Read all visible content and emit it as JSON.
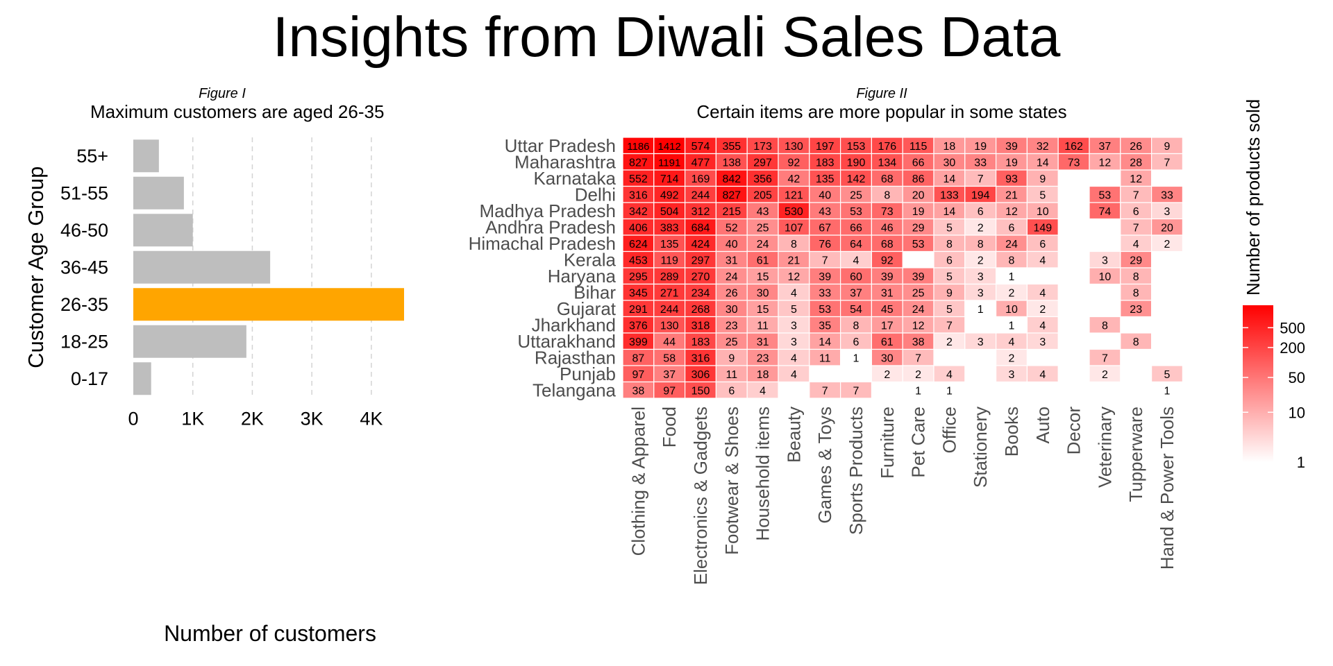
{
  "title": "Insights from Diwali Sales Data",
  "chart_data": [
    {
      "type": "bar",
      "orientation": "horizontal",
      "figure_label": "Figure I",
      "subtitle": "Maximum customers are aged 26-35",
      "xlabel": "Number of customers",
      "ylabel": "Customer Age Group",
      "categories": [
        "55+",
        "51-55",
        "46-50",
        "36-45",
        "26-35",
        "18-25",
        "0-17"
      ],
      "values": [
        430,
        850,
        1000,
        2300,
        4550,
        1900,
        300
      ],
      "highlight": "26-35",
      "xlim": [
        0,
        4550
      ],
      "xticks": [
        0,
        1000,
        2000,
        3000,
        4000
      ],
      "xtick_labels": [
        "0",
        "1K",
        "2K",
        "3K",
        "4K"
      ],
      "grid": "vertical dashed",
      "colors": {
        "bar": "#bebebe",
        "highlight": "#ffa500",
        "grid": "#d3d3d3"
      }
    },
    {
      "type": "heatmap",
      "figure_label": "Figure II",
      "subtitle": "Certain items are more popular in some states",
      "rows": [
        "Uttar Pradesh",
        "Maharashtra",
        "Karnataka",
        "Delhi",
        "Madhya Pradesh",
        "Andhra Pradesh",
        "Himachal Pradesh",
        "Kerala",
        "Haryana",
        "Bihar",
        "Gujarat",
        "Jharkhand",
        "Uttarakhand",
        "Rajasthan",
        "Punjab",
        "Telangana"
      ],
      "columns": [
        "Clothing & Apparel",
        "Food",
        "Electronics & Gadgets",
        "Footwear & Shoes",
        "Household items",
        "Beauty",
        "Games & Toys",
        "Sports Products",
        "Furniture",
        "Pet Care",
        "Office",
        "Stationery",
        "Books",
        "Auto",
        "Decor",
        "Veterinary",
        "Tupperware",
        "Hand & Power Tools"
      ],
      "values": [
        [
          1186,
          1412,
          574,
          355,
          173,
          130,
          197,
          153,
          176,
          115,
          18,
          19,
          39,
          32,
          162,
          37,
          26,
          9
        ],
        [
          827,
          1191,
          477,
          138,
          297,
          92,
          183,
          190,
          134,
          66,
          30,
          33,
          19,
          14,
          73,
          12,
          28,
          7
        ],
        [
          552,
          714,
          169,
          842,
          356,
          42,
          135,
          142,
          68,
          86,
          14,
          7,
          93,
          9,
          null,
          null,
          12,
          null
        ],
        [
          316,
          492,
          244,
          827,
          205,
          121,
          40,
          25,
          8,
          20,
          133,
          194,
          21,
          5,
          null,
          53,
          7,
          33
        ],
        [
          342,
          504,
          312,
          215,
          43,
          530,
          43,
          53,
          73,
          19,
          14,
          6,
          12,
          10,
          null,
          74,
          6,
          3
        ],
        [
          406,
          383,
          684,
          52,
          25,
          107,
          67,
          66,
          46,
          29,
          5,
          2,
          6,
          149,
          null,
          null,
          7,
          20
        ],
        [
          624,
          135,
          424,
          40,
          24,
          8,
          76,
          64,
          68,
          53,
          8,
          8,
          24,
          6,
          null,
          null,
          4,
          2
        ],
        [
          453,
          119,
          297,
          31,
          61,
          21,
          7,
          4,
          92,
          null,
          6,
          2,
          8,
          4,
          null,
          3,
          29,
          null
        ],
        [
          295,
          289,
          270,
          24,
          15,
          12,
          39,
          60,
          39,
          39,
          5,
          3,
          1,
          null,
          null,
          10,
          8,
          null
        ],
        [
          345,
          271,
          234,
          26,
          30,
          4,
          33,
          37,
          31,
          25,
          9,
          3,
          2,
          4,
          null,
          null,
          8,
          null
        ],
        [
          291,
          244,
          268,
          30,
          15,
          5,
          53,
          54,
          45,
          24,
          5,
          1,
          10,
          2,
          null,
          null,
          23,
          null
        ],
        [
          376,
          130,
          318,
          23,
          11,
          3,
          35,
          8,
          17,
          12,
          7,
          null,
          1,
          4,
          null,
          8,
          null,
          null
        ],
        [
          399,
          44,
          183,
          25,
          31,
          3,
          14,
          6,
          61,
          38,
          2,
          3,
          4,
          3,
          null,
          null,
          8,
          null
        ],
        [
          87,
          58,
          316,
          9,
          23,
          4,
          11,
          1,
          30,
          7,
          null,
          null,
          2,
          null,
          null,
          7,
          null,
          null
        ],
        [
          97,
          37,
          306,
          11,
          18,
          4,
          null,
          null,
          2,
          2,
          4,
          null,
          3,
          4,
          null,
          2,
          null,
          5
        ],
        [
          38,
          97,
          150,
          6,
          4,
          null,
          7,
          7,
          null,
          1,
          1,
          null,
          null,
          null,
          null,
          null,
          null,
          1
        ]
      ],
      "color_scale": {
        "title": "Number of products sold",
        "scale": "log",
        "range": [
          1,
          1412
        ],
        "low_color": "#ffffff",
        "high_color": "#ff0000",
        "ticks": [
          1,
          10,
          50,
          200,
          500
        ],
        "tick_labels": [
          "1",
          "10",
          "50",
          "200",
          "500"
        ]
      }
    }
  ]
}
